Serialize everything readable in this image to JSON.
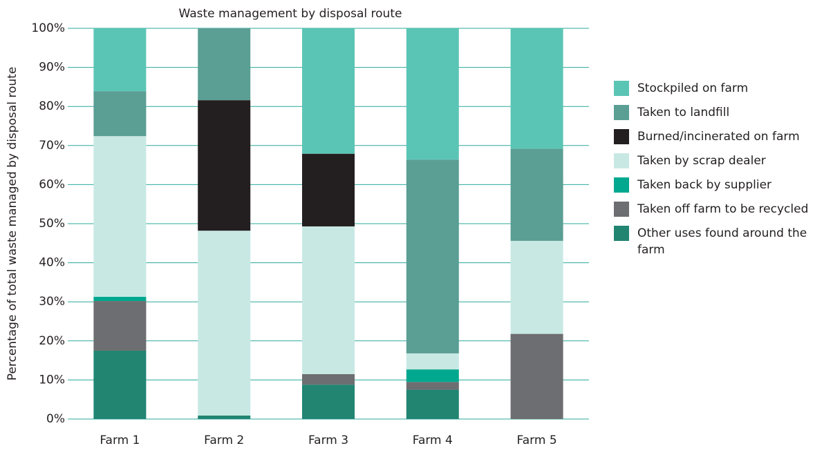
{
  "chart_data": {
    "type": "stacked_bar",
    "title": "Waste management by disposal route",
    "y_label": "Percentage of total waste managed by disposal route",
    "categories": [
      "Farm 1",
      "Farm 2",
      "Farm 3",
      "Farm 4",
      "Farm 5"
    ],
    "series": [
      {
        "name": "Other uses found around the farm",
        "color": "#218572",
        "values": [
          17.5,
          0.9,
          8.8,
          7.5,
          0
        ]
      },
      {
        "name": "Taken off farm to be recycled",
        "color": "#6d6e71",
        "values": [
          12.7,
          0,
          2.7,
          2.0,
          21.8
        ]
      },
      {
        "name": "Taken back by supplier",
        "color": "#00a88f",
        "values": [
          1.1,
          0,
          0,
          3.2,
          0
        ]
      },
      {
        "name": "Taken by scrap dealer",
        "color": "#c8e9e3",
        "values": [
          41.1,
          47.3,
          37.8,
          4.1,
          23.8
        ]
      },
      {
        "name": "Burned/incinerated on farm",
        "color": "#231f20",
        "values": [
          0,
          33.4,
          18.6,
          0,
          0
        ]
      },
      {
        "name": "Taken to landfill",
        "color": "#5a9e94",
        "values": [
          11.5,
          18.4,
          0,
          49.6,
          23.6
        ]
      },
      {
        "name": "Stockpiled on farm",
        "color": "#5bc5b5",
        "values": [
          16.1,
          0,
          32.1,
          33.6,
          30.8
        ]
      }
    ],
    "ylim": [
      0,
      100
    ],
    "yticks": [
      {
        "value": 0,
        "label": "0%"
      },
      {
        "value": 10,
        "label": "10%"
      },
      {
        "value": 20,
        "label": "20%"
      },
      {
        "value": 30,
        "label": "30%"
      },
      {
        "value": 40,
        "label": "40%"
      },
      {
        "value": 50,
        "label": "50%"
      },
      {
        "value": 60,
        "label": "60%"
      },
      {
        "value": 70,
        "label": "70%"
      },
      {
        "value": 80,
        "label": "80%"
      },
      {
        "value": 90,
        "label": "90%"
      },
      {
        "value": 100,
        "label": "100%"
      }
    ],
    "grid": true,
    "grid_color": "#2aa899",
    "legend": "right"
  }
}
